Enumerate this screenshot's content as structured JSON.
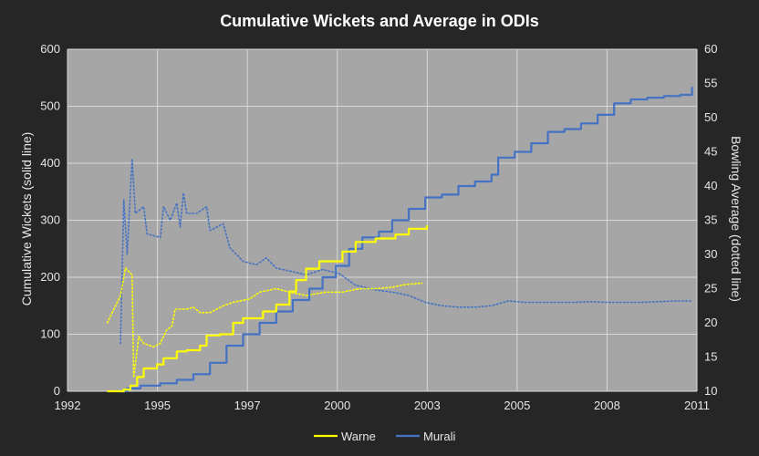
{
  "chart_data": {
    "type": "line",
    "title": "Cumulative Wickets and Average in ODIs",
    "ylabel_left": "Cumulative Wickets (solid line)",
    "ylabel_right": "Bowling Average (dotted line)",
    "xlim": [
      1992,
      2011
    ],
    "ylim_left": [
      0,
      600
    ],
    "ylim_right": [
      10,
      60
    ],
    "x_ticks": [
      "1992",
      "1995",
      "1997",
      "2000",
      "2003",
      "2005",
      "2008",
      "2011"
    ],
    "y_left_ticks": [
      "0",
      "100",
      "200",
      "300",
      "400",
      "500",
      "600"
    ],
    "y_right_ticks": [
      "10",
      "15",
      "20",
      "25",
      "30",
      "35",
      "40",
      "45",
      "50",
      "55",
      "60"
    ],
    "grid": true,
    "legend_position": "bottom",
    "colors": {
      "background": "#262626",
      "plot_area": "#a6a6a6",
      "gridline": "#d9d9d9",
      "warne": "#ffff00",
      "murali": "#4472c4"
    },
    "series": [
      {
        "name": "Warne",
        "axis": "left",
        "style": "solid",
        "points": [
          [
            1993.2,
            0
          ],
          [
            1993.7,
            3
          ],
          [
            1993.9,
            10
          ],
          [
            1994.1,
            25
          ],
          [
            1994.3,
            40
          ],
          [
            1994.7,
            47
          ],
          [
            1994.9,
            58
          ],
          [
            1995.3,
            70
          ],
          [
            1995.6,
            72
          ],
          [
            1996.0,
            80
          ],
          [
            1996.2,
            98
          ],
          [
            1996.6,
            100
          ],
          [
            1997.0,
            120
          ],
          [
            1997.3,
            128
          ],
          [
            1997.9,
            140
          ],
          [
            1998.3,
            152
          ],
          [
            1998.7,
            175
          ],
          [
            1998.9,
            195
          ],
          [
            1999.2,
            215
          ],
          [
            1999.6,
            228
          ],
          [
            2000.3,
            245
          ],
          [
            2000.7,
            262
          ],
          [
            2001.3,
            268
          ],
          [
            2001.9,
            275
          ],
          [
            2002.3,
            285
          ],
          [
            2002.85,
            291
          ]
        ]
      },
      {
        "name": "Murali",
        "axis": "left",
        "style": "solid",
        "points": [
          [
            1993.5,
            0
          ],
          [
            1993.8,
            5
          ],
          [
            1994.2,
            10
          ],
          [
            1994.8,
            14
          ],
          [
            1995.3,
            20
          ],
          [
            1995.8,
            30
          ],
          [
            1996.3,
            50
          ],
          [
            1996.8,
            80
          ],
          [
            1997.3,
            100
          ],
          [
            1997.8,
            120
          ],
          [
            1998.3,
            140
          ],
          [
            1998.8,
            160
          ],
          [
            1999.3,
            180
          ],
          [
            1999.7,
            200
          ],
          [
            2000.1,
            220
          ],
          [
            2000.5,
            250
          ],
          [
            2000.9,
            270
          ],
          [
            2001.4,
            280
          ],
          [
            2001.8,
            300
          ],
          [
            2002.3,
            320
          ],
          [
            2002.8,
            340
          ],
          [
            2003.3,
            345
          ],
          [
            2003.8,
            360
          ],
          [
            2004.3,
            368
          ],
          [
            2004.8,
            380
          ],
          [
            2005.0,
            410
          ],
          [
            2005.5,
            420
          ],
          [
            2006.0,
            435
          ],
          [
            2006.5,
            455
          ],
          [
            2007.0,
            460
          ],
          [
            2007.5,
            470
          ],
          [
            2008.0,
            485
          ],
          [
            2008.5,
            505
          ],
          [
            2009.0,
            512
          ],
          [
            2009.5,
            515
          ],
          [
            2010.0,
            518
          ],
          [
            2010.5,
            520
          ],
          [
            2010.85,
            534
          ]
        ]
      },
      {
        "name": "Warne",
        "axis": "right",
        "style": "dotted",
        "points": [
          [
            1993.2,
            20
          ],
          [
            1993.6,
            24
          ],
          [
            1993.75,
            28
          ],
          [
            1993.95,
            27
          ],
          [
            1994.0,
            12
          ],
          [
            1994.15,
            18
          ],
          [
            1994.3,
            17
          ],
          [
            1994.6,
            16.5
          ],
          [
            1994.8,
            17
          ],
          [
            1995.0,
            19
          ],
          [
            1995.15,
            19.5
          ],
          [
            1995.25,
            22
          ],
          [
            1995.6,
            22
          ],
          [
            1995.8,
            22.3
          ],
          [
            1996.0,
            21.5
          ],
          [
            1996.3,
            21.5
          ],
          [
            1996.7,
            22.5
          ],
          [
            1997.0,
            23
          ],
          [
            1997.5,
            23.5
          ],
          [
            1997.8,
            24.5
          ],
          [
            1998.3,
            25
          ],
          [
            1998.7,
            24.5
          ],
          [
            1999.2,
            24
          ],
          [
            1999.8,
            24.5
          ],
          [
            2000.3,
            24.5
          ],
          [
            2000.8,
            25
          ],
          [
            2001.3,
            25
          ],
          [
            2001.8,
            25.2
          ],
          [
            2002.2,
            25.6
          ],
          [
            2002.7,
            25.8
          ]
        ]
      },
      {
        "name": "Murali",
        "axis": "right",
        "style": "dotted",
        "points": [
          [
            1993.6,
            17
          ],
          [
            1993.7,
            38
          ],
          [
            1993.8,
            30
          ],
          [
            1993.95,
            44
          ],
          [
            1994.05,
            36
          ],
          [
            1994.3,
            37
          ],
          [
            1994.4,
            33
          ],
          [
            1994.8,
            32.5
          ],
          [
            1994.9,
            37
          ],
          [
            1995.1,
            35
          ],
          [
            1995.3,
            37.5
          ],
          [
            1995.4,
            34
          ],
          [
            1995.5,
            39
          ],
          [
            1995.6,
            36
          ],
          [
            1995.9,
            36
          ],
          [
            1996.2,
            37
          ],
          [
            1996.3,
            33.5
          ],
          [
            1996.7,
            34.5
          ],
          [
            1996.9,
            31
          ],
          [
            1997.3,
            29
          ],
          [
            1997.7,
            28.5
          ],
          [
            1998.0,
            29.5
          ],
          [
            1998.3,
            28
          ],
          [
            1998.8,
            27.5
          ],
          [
            1999.2,
            27
          ],
          [
            1999.7,
            27.8
          ],
          [
            2000.2,
            27.2
          ],
          [
            2000.7,
            25.5
          ],
          [
            2001.3,
            24.8
          ],
          [
            2001.8,
            24.5
          ],
          [
            2002.3,
            24
          ],
          [
            2002.8,
            23
          ],
          [
            2003.3,
            22.5
          ],
          [
            2003.8,
            22.3
          ],
          [
            2004.3,
            22.3
          ],
          [
            2004.8,
            22.5
          ],
          [
            2005.3,
            23.2
          ],
          [
            2005.8,
            23
          ],
          [
            2006.3,
            23
          ],
          [
            2006.8,
            23
          ],
          [
            2007.3,
            23
          ],
          [
            2007.8,
            23.1
          ],
          [
            2008.3,
            23
          ],
          [
            2008.8,
            23
          ],
          [
            2009.3,
            23
          ],
          [
            2009.8,
            23.1
          ],
          [
            2010.3,
            23.2
          ],
          [
            2010.85,
            23.2
          ]
        ]
      }
    ],
    "legend": [
      "Warne",
      "Murali"
    ]
  }
}
